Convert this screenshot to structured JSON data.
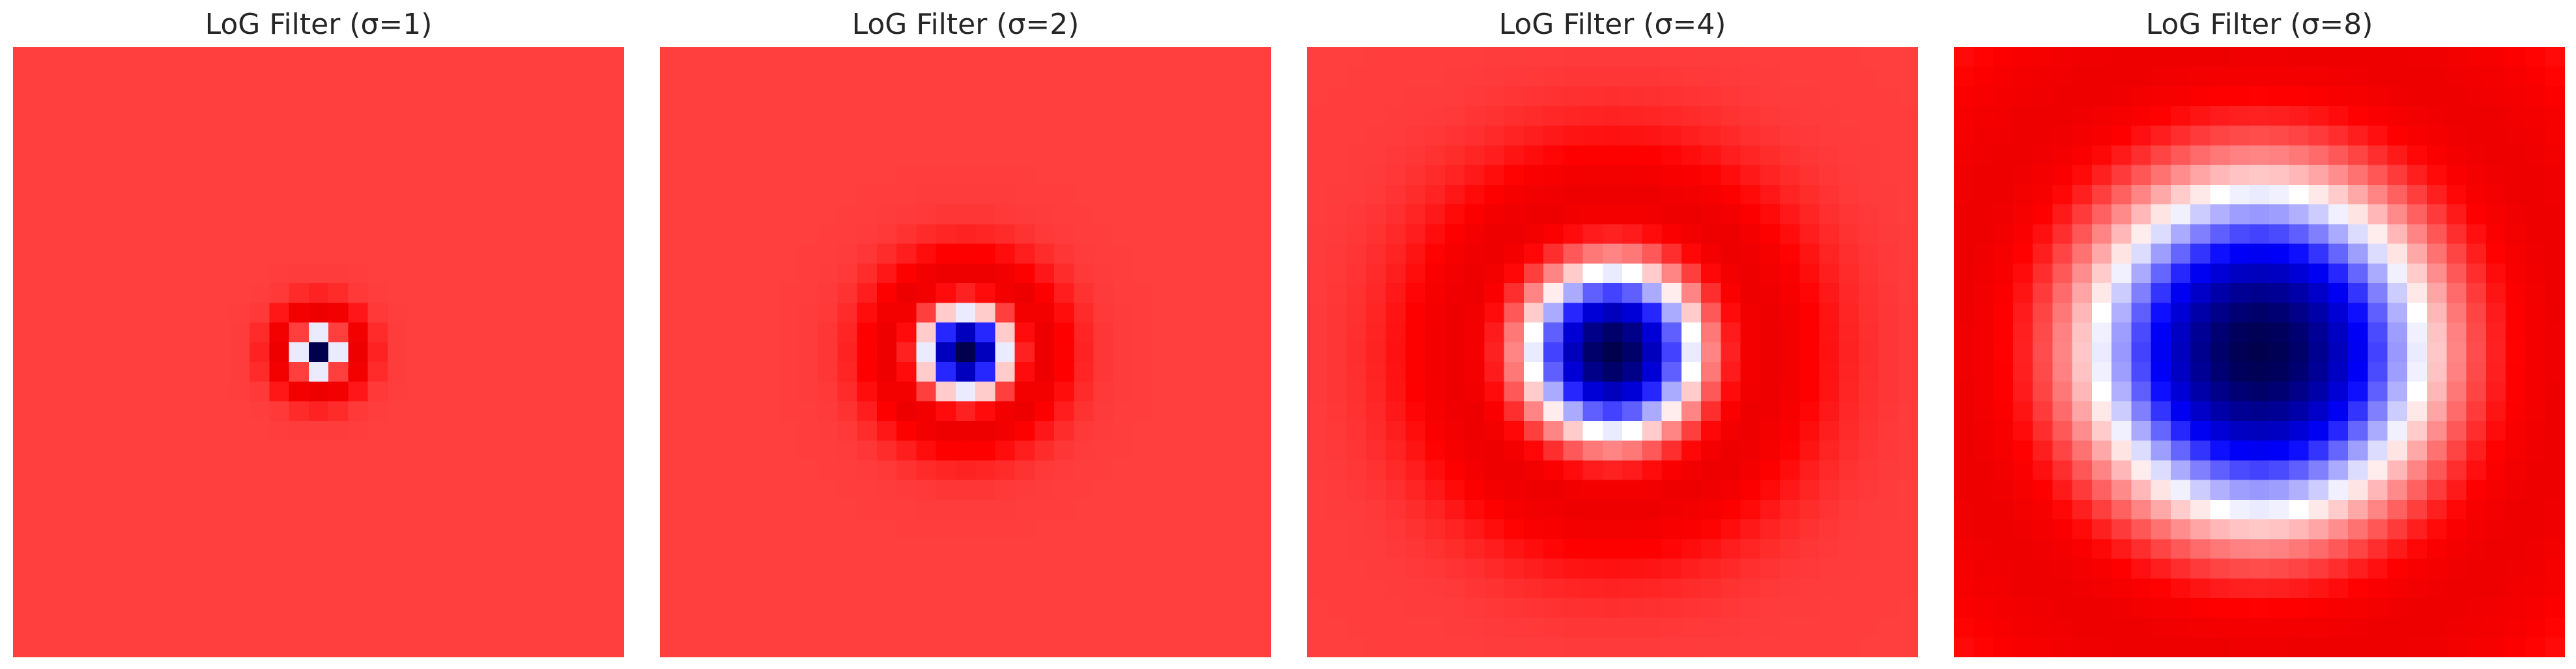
{
  "chart_data": [
    {
      "type": "heatmap",
      "title": "LoG Filter (σ=1)",
      "sigma": 1,
      "grid_size": 31,
      "colormap": "seismic",
      "value_range": [
        -1,
        0.45
      ],
      "axis": "off"
    },
    {
      "type": "heatmap",
      "title": "LoG Filter (σ=2)",
      "sigma": 2,
      "grid_size": 31,
      "colormap": "seismic",
      "value_range": [
        -1,
        0.45
      ],
      "axis": "off"
    },
    {
      "type": "heatmap",
      "title": "LoG Filter (σ=4)",
      "sigma": 4,
      "grid_size": 31,
      "colormap": "seismic",
      "value_range": [
        -1,
        0.45
      ],
      "axis": "off"
    },
    {
      "type": "heatmap",
      "title": "LoG Filter (σ=8)",
      "sigma": 8,
      "grid_size": 31,
      "colormap": "seismic",
      "value_range": [
        -1,
        0.45
      ],
      "axis": "off"
    }
  ]
}
